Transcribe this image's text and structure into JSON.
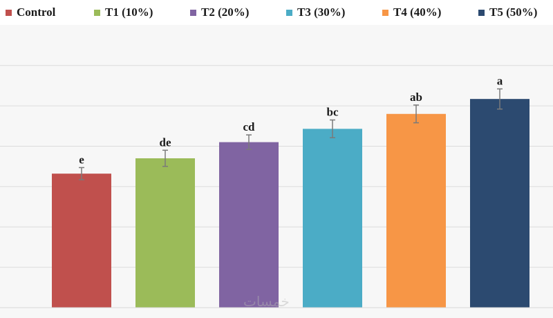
{
  "chart_data": {
    "type": "bar",
    "categories": [
      "Control",
      "T1 (10%)",
      "T2 (20%)",
      "T3 (30%)",
      "T4 (40%)",
      "T5 (50%)"
    ],
    "values": [
      3.32,
      3.7,
      4.1,
      4.43,
      4.8,
      5.17
    ],
    "errors": [
      0.15,
      0.2,
      0.18,
      0.22,
      0.22,
      0.25
    ],
    "letters": [
      "e",
      "de",
      "cd",
      "bc",
      "ab",
      "a"
    ],
    "colors": [
      "#c0504d",
      "#9bbb59",
      "#8064a2",
      "#4bacc6",
      "#f79646",
      "#2c4a70"
    ],
    "ylim": [
      0,
      6.8
    ],
    "grid": true,
    "legend_position": "top",
    "title": "",
    "xlabel": "",
    "ylabel": ""
  },
  "legend": {
    "items": [
      {
        "label": "Control",
        "color": "#c0504d"
      },
      {
        "label": "T1 (10%)",
        "color": "#9bbb59"
      },
      {
        "label": "T2 (20%)",
        "color": "#8064a2"
      },
      {
        "label": "T3 (30%)",
        "color": "#4bacc6"
      },
      {
        "label": "T4 (40%)",
        "color": "#f79646"
      },
      {
        "label": "T5 (50%)",
        "color": "#2c4a70"
      }
    ]
  },
  "watermark": {
    "text": "خمسات"
  }
}
